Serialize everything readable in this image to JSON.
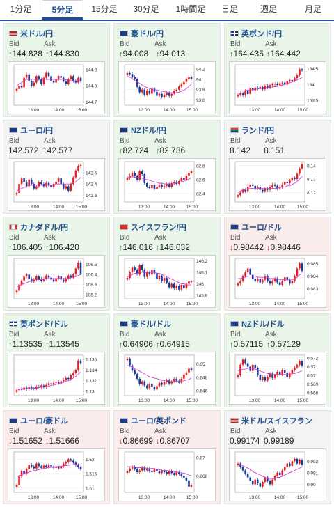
{
  "tabs": [
    {
      "label": "1分足",
      "active": false
    },
    {
      "label": "5分足",
      "active": true
    },
    {
      "label": "15分足",
      "active": false
    },
    {
      "label": "30分足",
      "active": false
    },
    {
      "label": "1時間足",
      "active": false
    },
    {
      "label": "日足",
      "active": false
    },
    {
      "label": "週足",
      "active": false
    },
    {
      "label": "月足",
      "active": false
    }
  ],
  "labels": {
    "bid": "Bid",
    "ask": "Ask"
  },
  "x_ticks": [
    "13:00",
    "14:00",
    "15:00"
  ],
  "colors": {
    "up_arrow": "#1a7f2e",
    "down_arrow": "#c62828",
    "candle_up": "#e02020",
    "candle_down": "#1b3b9a",
    "ma": "#d23fd2"
  },
  "cards": [
    {
      "name": "米ドル/円",
      "flag": "us",
      "state": "up",
      "bid": "144.828",
      "ask": "144.830",
      "bid_dir": "up",
      "ask_dir": "up",
      "y_ticks": [
        "144.9",
        "144.8",
        "144.7"
      ],
      "ylim": [
        144.68,
        144.93
      ],
      "close": [
        144.78,
        144.8,
        144.79,
        144.85,
        144.87,
        144.83,
        144.8,
        144.82,
        144.86,
        144.84,
        144.81,
        144.85,
        144.88,
        144.86,
        144.83,
        144.82,
        144.84,
        144.86,
        144.85,
        144.83,
        144.81,
        144.84,
        144.86,
        144.83,
        144.82,
        144.85,
        144.83
      ],
      "ma": [
        144.8,
        144.81,
        144.82,
        144.83,
        144.84,
        144.84,
        144.84,
        144.84,
        144.84,
        144.84,
        144.84,
        144.84,
        144.84,
        144.84,
        144.84,
        144.84,
        144.84,
        144.84,
        144.84,
        144.84,
        144.84,
        144.83,
        144.83,
        144.83,
        144.83,
        144.83,
        144.83
      ]
    },
    {
      "name": "豪ドル/円",
      "flag": "au",
      "state": "up",
      "bid": "94.008",
      "ask": "94.013",
      "bid_dir": "up",
      "ask_dir": "up",
      "y_ticks": [
        "94.2",
        "94",
        "93.8",
        "93.6"
      ],
      "ylim": [
        93.5,
        94.28
      ],
      "close": [
        94.12,
        94.1,
        94.05,
        94.0,
        93.85,
        93.75,
        93.8,
        93.7,
        93.78,
        93.72,
        93.82,
        93.76,
        93.68,
        93.72,
        93.66,
        93.7,
        93.74,
        93.68,
        93.72,
        93.78,
        93.8,
        93.86,
        93.9,
        93.95,
        94.0,
        94.04,
        94.01
      ],
      "ma": [
        94.06,
        94.04,
        94.01,
        93.98,
        93.95,
        93.92,
        93.89,
        93.86,
        93.84,
        93.82,
        93.81,
        93.8,
        93.79,
        93.78,
        93.77,
        93.76,
        93.75,
        93.74,
        93.74,
        93.74,
        93.74,
        93.75,
        93.77,
        93.79,
        93.82,
        93.86,
        93.9
      ]
    },
    {
      "name": "英ポンド/円",
      "flag": "gb",
      "state": "up",
      "bid": "164.435",
      "ask": "164.442",
      "bid_dir": "up",
      "ask_dir": "up",
      "y_ticks": [
        "164.5",
        "164",
        "163.5"
      ],
      "ylim": [
        163.35,
        164.62
      ],
      "close": [
        163.68,
        163.72,
        163.66,
        163.8,
        163.7,
        163.88,
        163.82,
        163.9,
        163.86,
        163.92,
        163.85,
        163.96,
        163.9,
        163.98,
        164.0,
        164.02,
        163.98,
        164.04,
        164.06,
        164.0,
        164.1,
        164.14,
        164.12,
        164.2,
        164.3,
        164.48,
        164.44
      ],
      "ma": [
        163.8,
        163.8,
        163.8,
        163.81,
        163.82,
        163.83,
        163.84,
        163.85,
        163.86,
        163.87,
        163.88,
        163.89,
        163.9,
        163.91,
        163.92,
        163.93,
        163.94,
        163.96,
        163.98,
        164.0,
        164.02,
        164.05,
        164.08,
        164.11,
        164.14,
        164.18,
        164.22
      ]
    },
    {
      "name": "ユーロ/円",
      "flag": "eu",
      "state": "flat",
      "bid": "142.572",
      "ask": "142.577",
      "bid_dir": "none",
      "ask_dir": "none",
      "y_ticks": [
        "142.5",
        "142.4",
        "142.3"
      ],
      "ylim": [
        142.24,
        142.6
      ],
      "close": [
        142.32,
        142.4,
        142.45,
        142.42,
        142.38,
        142.44,
        142.4,
        142.36,
        142.38,
        142.42,
        142.4,
        142.38,
        142.41,
        142.39,
        142.37,
        142.4,
        142.42,
        142.45,
        142.4,
        142.36,
        142.38,
        142.34,
        142.4,
        142.46,
        142.52,
        142.56,
        142.57
      ],
      "ma": [
        142.34,
        142.35,
        142.36,
        142.37,
        142.38,
        142.39,
        142.39,
        142.39,
        142.39,
        142.39,
        142.39,
        142.39,
        142.39,
        142.39,
        142.39,
        142.39,
        142.4,
        142.4,
        142.4,
        142.4,
        142.4,
        142.4,
        142.4,
        142.41,
        142.42,
        142.44,
        142.46
      ]
    },
    {
      "name": "NZドル/円",
      "flag": "nz",
      "state": "up",
      "bid": "82.724",
      "ask": "82.736",
      "bid_dir": "up",
      "ask_dir": "up",
      "y_ticks": [
        "82.8",
        "82.6",
        "82.4"
      ],
      "ylim": [
        82.28,
        82.86
      ],
      "close": [
        82.62,
        82.66,
        82.7,
        82.65,
        82.6,
        82.72,
        82.68,
        82.55,
        82.5,
        82.48,
        82.52,
        82.47,
        82.5,
        82.53,
        82.49,
        82.51,
        82.54,
        82.5,
        82.55,
        82.57,
        82.54,
        82.58,
        82.62,
        82.6,
        82.66,
        82.7,
        82.72
      ],
      "ma": [
        82.64,
        82.64,
        82.64,
        82.64,
        82.63,
        82.63,
        82.62,
        82.61,
        82.6,
        82.59,
        82.58,
        82.57,
        82.56,
        82.55,
        82.55,
        82.54,
        82.54,
        82.54,
        82.54,
        82.54,
        82.55,
        82.56,
        82.57,
        82.58,
        82.59,
        82.61,
        82.63
      ]
    },
    {
      "name": "ランド/円",
      "flag": "za",
      "state": "flat",
      "bid": "8.142",
      "ask": "8.151",
      "bid_dir": "none",
      "ask_dir": "none",
      "y_ticks": [
        "8.14",
        "8.13",
        "8.12"
      ],
      "ylim": [
        8.113,
        8.143
      ],
      "close": [
        8.118,
        8.12,
        8.122,
        8.121,
        8.124,
        8.126,
        8.125,
        8.123,
        8.124,
        8.122,
        8.121,
        8.123,
        8.122,
        8.124,
        8.126,
        8.125,
        8.123,
        8.124,
        8.126,
        8.128,
        8.127,
        8.129,
        8.131,
        8.13,
        8.134,
        8.138,
        8.141
      ],
      "ma": [
        8.12,
        8.121,
        8.122,
        8.122,
        8.123,
        8.123,
        8.123,
        8.123,
        8.123,
        8.123,
        8.123,
        8.123,
        8.123,
        8.123,
        8.123,
        8.123,
        8.123,
        8.124,
        8.124,
        8.124,
        8.125,
        8.125,
        8.126,
        8.127,
        8.128,
        8.13,
        8.132
      ]
    },
    {
      "name": "カナダドル/円",
      "flag": "ca",
      "state": "up",
      "bid": "106.405",
      "ask": "106.420",
      "bid_dir": "up",
      "ask_dir": "up",
      "y_ticks": [
        "106.5",
        "106.4",
        "106.3",
        "106.2"
      ],
      "ylim": [
        106.16,
        106.56
      ],
      "close": [
        106.24,
        106.3,
        106.34,
        106.38,
        106.4,
        106.36,
        106.33,
        106.35,
        106.38,
        106.36,
        106.34,
        106.36,
        106.39,
        106.37,
        106.35,
        106.33,
        106.36,
        106.38,
        106.35,
        106.33,
        106.36,
        106.39,
        106.37,
        106.4,
        106.46,
        106.52,
        106.41
      ],
      "ma": [
        106.28,
        106.29,
        106.3,
        106.31,
        106.32,
        106.33,
        106.34,
        106.34,
        106.35,
        106.35,
        106.35,
        106.35,
        106.36,
        106.36,
        106.36,
        106.36,
        106.36,
        106.36,
        106.36,
        106.36,
        106.36,
        106.36,
        106.37,
        106.37,
        106.38,
        106.39,
        106.4
      ]
    },
    {
      "name": "スイスフラン/円",
      "flag": "ch",
      "state": "up",
      "bid": "146.016",
      "ask": "146.032",
      "bid_dir": "up",
      "ask_dir": "up",
      "y_ticks": [
        "146.2",
        "146.1",
        "146",
        "145.9"
      ],
      "ylim": [
        145.87,
        146.22
      ],
      "close": [
        146.05,
        146.1,
        146.14,
        146.12,
        146.08,
        146.16,
        146.12,
        146.06,
        146.1,
        146.08,
        146.12,
        146.09,
        146.04,
        146.07,
        146.02,
        146.05,
        146.01,
        145.97,
        146.0,
        145.96,
        145.98,
        145.95,
        145.99,
        145.96,
        146.0,
        146.02,
        146.02
      ],
      "ma": [
        146.06,
        146.07,
        146.08,
        146.09,
        146.09,
        146.1,
        146.1,
        146.1,
        146.1,
        146.1,
        146.1,
        146.1,
        146.09,
        146.09,
        146.08,
        146.07,
        146.06,
        146.05,
        146.04,
        146.03,
        146.02,
        146.01,
        146.0,
        146.0,
        145.99,
        145.99,
        145.99
      ]
    },
    {
      "name": "ユーロ/ドル",
      "flag": "eu",
      "state": "down",
      "bid": "0.98442",
      "ask": "0.98446",
      "bid_dir": "down",
      "ask_dir": "down",
      "y_ticks": [
        "0.985",
        "0.984",
        "0.983"
      ],
      "ylim": [
        0.9822,
        0.9854
      ],
      "close": [
        0.9834,
        0.9836,
        0.984,
        0.9843,
        0.9846,
        0.9841,
        0.9838,
        0.9836,
        0.9838,
        0.9835,
        0.9837,
        0.984,
        0.9836,
        0.9834,
        0.9836,
        0.9838,
        0.9835,
        0.9833,
        0.9836,
        0.9839,
        0.9837,
        0.9834,
        0.9836,
        0.984,
        0.9846,
        0.985,
        0.9844
      ],
      "ma": [
        0.9838,
        0.9838,
        0.9839,
        0.9839,
        0.984,
        0.984,
        0.984,
        0.984,
        0.9839,
        0.9839,
        0.9839,
        0.9839,
        0.9839,
        0.9838,
        0.9838,
        0.9838,
        0.9838,
        0.9837,
        0.9837,
        0.9837,
        0.9837,
        0.9837,
        0.9837,
        0.9838,
        0.9839,
        0.9841,
        0.9842
      ]
    },
    {
      "name": "英ポンド/ドル",
      "flag": "gb",
      "state": "up",
      "bid": "1.13535",
      "ask": "1.13545",
      "bid_dir": "up",
      "ask_dir": "up",
      "y_ticks": [
        "1.136",
        "1.134",
        "1.132",
        "1.13"
      ],
      "ylim": [
        1.1292,
        1.1368
      ],
      "close": [
        1.1302,
        1.1305,
        1.1303,
        1.1307,
        1.1304,
        1.1308,
        1.1306,
        1.1305,
        1.1309,
        1.1307,
        1.1311,
        1.1308,
        1.1312,
        1.1315,
        1.1313,
        1.1316,
        1.1318,
        1.1315,
        1.1319,
        1.1322,
        1.1325,
        1.1323,
        1.133,
        1.1334,
        1.134,
        1.1358,
        1.1353
      ],
      "ma": [
        1.1304,
        1.1304,
        1.1305,
        1.1305,
        1.1306,
        1.1306,
        1.1306,
        1.1306,
        1.1307,
        1.1307,
        1.1308,
        1.1308,
        1.1309,
        1.131,
        1.1311,
        1.1312,
        1.1313,
        1.1314,
        1.1315,
        1.1317,
        1.1319,
        1.132,
        1.1322,
        1.1325,
        1.1328,
        1.1332,
        1.1336
      ]
    },
    {
      "name": "豪ドル/ドル",
      "flag": "au",
      "state": "up",
      "bid": "0.64906",
      "ask": "0.64915",
      "bid_dir": "up",
      "ask_dir": "up",
      "y_ticks": [
        "0.65",
        "0.648",
        "0.646"
      ],
      "ylim": [
        0.6453,
        0.6513
      ],
      "close": [
        0.6508,
        0.6498,
        0.649,
        0.6485,
        0.6478,
        0.647,
        0.6474,
        0.6468,
        0.6464,
        0.647,
        0.6466,
        0.6462,
        0.6467,
        0.6472,
        0.6469,
        0.6473,
        0.6476,
        0.6471,
        0.6474,
        0.6478,
        0.6475,
        0.6472,
        0.6478,
        0.6484,
        0.6487,
        0.6493,
        0.6491
      ],
      "ma": [
        0.6498,
        0.6497,
        0.6495,
        0.6493,
        0.6491,
        0.6489,
        0.6487,
        0.6485,
        0.6483,
        0.6481,
        0.648,
        0.6479,
        0.6478,
        0.6477,
        0.6476,
        0.6475,
        0.6475,
        0.6474,
        0.6474,
        0.6474,
        0.6474,
        0.6474,
        0.6474,
        0.6475,
        0.6476,
        0.6477,
        0.6479
      ]
    },
    {
      "name": "NZドル/ドル",
      "flag": "nz",
      "state": "up",
      "bid": "0.57115",
      "ask": "0.57129",
      "bid_dir": "up",
      "ask_dir": "up",
      "y_ticks": [
        "0.572",
        "0.571",
        "0.57",
        "0.569",
        "0.568"
      ],
      "ylim": [
        0.5677,
        0.5723
      ],
      "close": [
        0.57,
        0.5712,
        0.5718,
        0.5714,
        0.571,
        0.5705,
        0.5712,
        0.5708,
        0.57,
        0.5695,
        0.5698,
        0.5694,
        0.5698,
        0.5702,
        0.5697,
        0.57,
        0.5704,
        0.5701,
        0.5706,
        0.5703,
        0.5698,
        0.5702,
        0.5706,
        0.5709,
        0.5712,
        0.5716,
        0.5711
      ],
      "ma": [
        0.5705,
        0.5706,
        0.5707,
        0.5707,
        0.5708,
        0.5708,
        0.5708,
        0.5707,
        0.5706,
        0.5705,
        0.5704,
        0.5703,
        0.5702,
        0.5702,
        0.5701,
        0.5701,
        0.5701,
        0.5701,
        0.5701,
        0.5701,
        0.5701,
        0.5701,
        0.5702,
        0.5702,
        0.5703,
        0.5704,
        0.5705
      ]
    },
    {
      "name": "ユーロ/豪ドル",
      "flag": "eu",
      "state": "down",
      "bid": "1.51652",
      "ask": "1.51666",
      "bid_dir": "down",
      "ask_dir": "down",
      "y_ticks": [
        "1.52",
        "1.515",
        "1.51"
      ],
      "ylim": [
        1.5085,
        1.5225
      ],
      "close": [
        1.511,
        1.514,
        1.516,
        1.515,
        1.5165,
        1.518,
        1.5175,
        1.5168,
        1.5185,
        1.5176,
        1.517,
        1.5178,
        1.5172,
        1.518,
        1.5175,
        1.517,
        1.5172,
        1.5168,
        1.5175,
        1.5185,
        1.519,
        1.52,
        1.5195,
        1.5188,
        1.518,
        1.5172,
        1.5165
      ],
      "ma": [
        1.514,
        1.5143,
        1.5146,
        1.5149,
        1.5152,
        1.5155,
        1.5158,
        1.516,
        1.5162,
        1.5164,
        1.5166,
        1.5168,
        1.517,
        1.5171,
        1.5172,
        1.5173,
        1.5174,
        1.5175,
        1.5176,
        1.5177,
        1.5178,
        1.5179,
        1.518,
        1.5181,
        1.5181,
        1.5181,
        1.518
      ]
    },
    {
      "name": "ユーロ/英ポンド",
      "flag": "eu",
      "state": "down",
      "bid": "0.86699",
      "ask": "0.86707",
      "bid_dir": "down",
      "ask_dir": "down",
      "y_ticks": [
        "0.87",
        "0.868"
      ],
      "ylim": [
        0.8662,
        0.8706
      ],
      "close": [
        0.8685,
        0.8688,
        0.869,
        0.8687,
        0.8684,
        0.8686,
        0.8689,
        0.8686,
        0.8688,
        0.8685,
        0.8684,
        0.8687,
        0.8685,
        0.8683,
        0.8686,
        0.8684,
        0.8682,
        0.8685,
        0.8683,
        0.8681,
        0.8684,
        0.8682,
        0.868,
        0.8678,
        0.8675,
        0.8668,
        0.867
      ],
      "ma": [
        0.869,
        0.869,
        0.869,
        0.869,
        0.8689,
        0.8689,
        0.8689,
        0.8689,
        0.8688,
        0.8688,
        0.8688,
        0.8688,
        0.8687,
        0.8687,
        0.8686,
        0.8686,
        0.8686,
        0.8685,
        0.8685,
        0.8685,
        0.8684,
        0.8684,
        0.8683,
        0.8683,
        0.8682,
        0.8681,
        0.868
      ]
    },
    {
      "name": "米ドル/スイスフラン",
      "flag": "us",
      "state": "flat",
      "bid": "0.99174",
      "ask": "0.99189",
      "bid_dir": "none",
      "ask_dir": "none",
      "y_ticks": [
        "0.992",
        "0.991",
        "0.99"
      ],
      "ylim": [
        0.9893,
        0.9928
      ],
      "close": [
        0.9918,
        0.9915,
        0.9912,
        0.9909,
        0.9906,
        0.9903,
        0.99,
        0.9904,
        0.9901,
        0.9898,
        0.9902,
        0.9906,
        0.9903,
        0.99,
        0.9904,
        0.9907,
        0.991,
        0.9908,
        0.9912,
        0.9915,
        0.9918,
        0.9916,
        0.992,
        0.9922,
        0.9918,
        0.9921,
        0.9917
      ],
      "ma": [
        0.9918,
        0.9917,
        0.9916,
        0.9915,
        0.9914,
        0.9913,
        0.9911,
        0.991,
        0.9909,
        0.9908,
        0.9907,
        0.9906,
        0.9905,
        0.9905,
        0.9905,
        0.9905,
        0.9906,
        0.9906,
        0.9907,
        0.9908,
        0.9909,
        0.991,
        0.9911,
        0.9912,
        0.9913,
        0.9914,
        0.9915
      ]
    }
  ]
}
